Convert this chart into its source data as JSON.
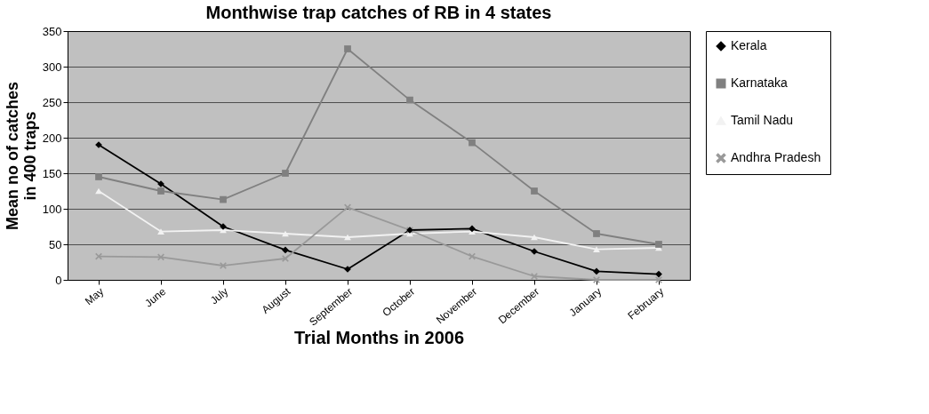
{
  "chart_data": {
    "type": "line",
    "title": "Monthwise trap catches of RB in 4 states",
    "xlabel": "Trial Months in 2006",
    "ylabel": "Mean no of catches in 400 traps",
    "categories": [
      "May",
      "June",
      "July",
      "August",
      "September",
      "October",
      "November",
      "December",
      "January",
      "February"
    ],
    "ylim": [
      0,
      350
    ],
    "yticks": [
      0,
      50,
      100,
      150,
      200,
      250,
      300,
      350
    ],
    "grid": "y",
    "legend": "right",
    "series": [
      {
        "name": "Kerala",
        "color": "#000000",
        "marker": "diamond",
        "values": [
          190,
          135,
          75,
          42,
          15,
          70,
          72,
          40,
          12,
          8
        ]
      },
      {
        "name": "Karnataka",
        "color": "#808080",
        "marker": "square",
        "values": [
          145,
          125,
          113,
          150,
          325,
          253,
          193,
          125,
          65,
          50
        ]
      },
      {
        "name": "Tamil Nadu",
        "color": "#f2f2f2",
        "marker": "triangle",
        "values": [
          125,
          68,
          70,
          65,
          60,
          65,
          68,
          60,
          43,
          45
        ]
      },
      {
        "name": "Andhra Pradesh",
        "color": "#999999",
        "marker": "cross",
        "values": [
          33,
          32,
          20,
          30,
          102,
          70,
          33,
          5,
          0,
          0
        ]
      }
    ]
  }
}
